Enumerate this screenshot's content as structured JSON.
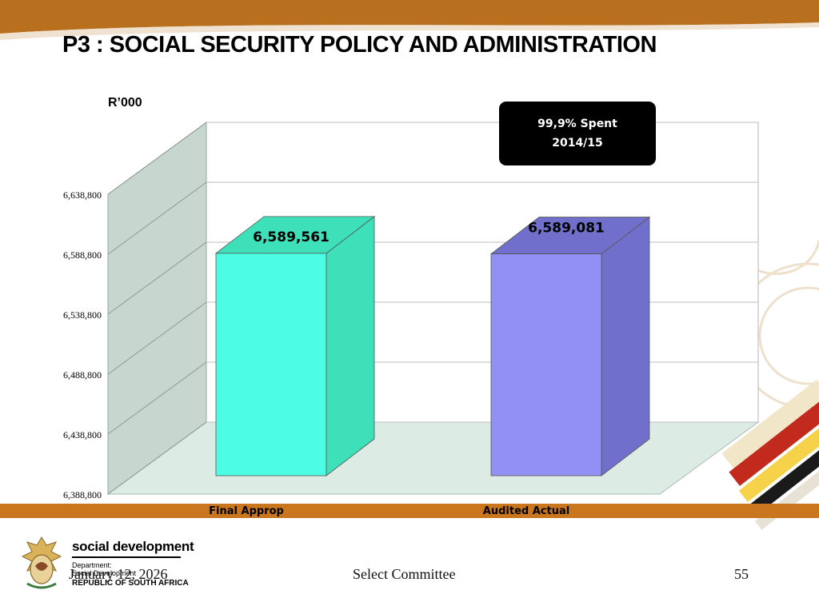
{
  "slide": {
    "title": "P3 : SOCIAL SECURITY POLICY AND ADMINISTRATION",
    "unit_label": "R’000"
  },
  "callout": {
    "line1": "99,9% Spent",
    "line2": "2014/15"
  },
  "chart_data": {
    "type": "bar",
    "categories": [
      "Final Approp",
      "Audited Actual"
    ],
    "values": [
      6589561,
      6589081
    ],
    "value_labels": [
      "6,589,561",
      "6,589,081"
    ],
    "ylim": [
      6388800,
      6638800
    ],
    "yticks": [
      6388800,
      6438800,
      6488800,
      6538800,
      6588800,
      6638800
    ],
    "ytick_labels": [
      "6,388,800",
      "6,438,800",
      "6,488,800",
      "6,538,800",
      "6,588,800",
      "6,638,800"
    ],
    "colors": [
      "#4cfde4",
      "#9090f5"
    ],
    "side_colors": [
      "#3ee0b9",
      "#7070cc"
    ],
    "grid": true,
    "three_d": true
  },
  "footer": {
    "date": "January 12, 2026",
    "center": "Select Committee",
    "page": "55"
  },
  "logo": {
    "name": "social development",
    "dept_line1": "Department:",
    "dept_line2": "Social Development",
    "country": "REPUBLIC OF SOUTH AFRICA"
  },
  "colors": {
    "band": "#b8701f",
    "footer_band": "#c9761e"
  }
}
